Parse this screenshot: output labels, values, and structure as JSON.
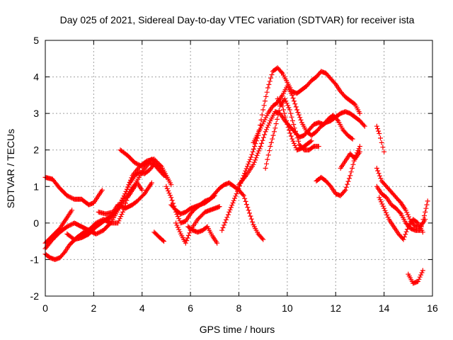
{
  "chart_data": {
    "type": "scatter",
    "title": "Day 025 of 2021, Sidereal Day-to-day VTEC variation (SDTVAR) for receiver ista",
    "xlabel": "GPS time / hours",
    "ylabel": "SDTVAR / TECUs",
    "xlim": [
      0,
      16
    ],
    "ylim": [
      -2,
      5
    ],
    "xticks": [
      0,
      2,
      4,
      6,
      8,
      10,
      12,
      14,
      16
    ],
    "yticks": [
      -2,
      -1,
      0,
      1,
      2,
      3,
      4,
      5
    ],
    "grid": true,
    "marker": "plus",
    "color": "#ff0000",
    "series": [
      {
        "x": [
          0.0,
          0.3,
          0.6,
          0.9,
          1.2,
          1.5,
          1.8,
          2.0,
          2.2,
          2.35
        ],
        "y": [
          1.25,
          1.2,
          0.95,
          0.75,
          0.65,
          0.65,
          0.5,
          0.55,
          0.75,
          0.9
        ]
      },
      {
        "x": [
          0.0,
          0.2,
          0.4,
          0.6,
          0.8,
          1.0,
          1.3,
          1.6,
          1.9,
          2.2,
          2.5,
          2.8,
          3.1,
          3.4,
          3.7,
          4.0,
          4.3,
          4.5,
          4.7,
          4.9
        ],
        "y": [
          -0.85,
          -0.95,
          -1.0,
          -0.95,
          -0.8,
          -0.6,
          -0.4,
          -0.25,
          -0.15,
          -0.05,
          0.1,
          0.25,
          0.45,
          0.75,
          1.05,
          1.4,
          1.65,
          1.6,
          1.45,
          1.3
        ]
      },
      {
        "x": [
          0.0,
          0.3,
          0.6,
          0.9,
          1.2,
          1.5,
          1.8,
          2.1,
          2.4,
          2.7,
          3.0,
          3.3,
          3.6,
          3.9,
          4.2,
          4.5,
          4.8,
          5.0,
          5.2
        ],
        "y": [
          -0.7,
          -0.45,
          -0.25,
          -0.1,
          0.0,
          -0.1,
          -0.2,
          -0.3,
          -0.2,
          0.0,
          0.35,
          0.8,
          1.3,
          1.55,
          1.7,
          1.75,
          1.55,
          1.3,
          1.05
        ]
      },
      {
        "x": [
          0.0,
          0.3,
          0.6,
          0.9,
          1.1
        ],
        "y": [
          -0.55,
          -0.35,
          -0.15,
          0.15,
          0.35
        ]
      },
      {
        "x": [
          0.9,
          1.2,
          1.5,
          1.8,
          2.1,
          2.4,
          2.7,
          3.0,
          3.3,
          3.5,
          3.7,
          3.9,
          4.1,
          4.3,
          4.5
        ],
        "y": [
          -0.3,
          -0.45,
          -0.4,
          -0.3,
          -0.1,
          0.05,
          0.15,
          0.4,
          0.8,
          1.1,
          1.3,
          1.4,
          1.35,
          1.45,
          1.6
        ]
      },
      {
        "x": [
          1.5,
          1.8,
          2.1,
          2.4,
          2.7,
          3.0,
          3.2,
          3.4,
          3.6,
          3.8,
          4.0
        ],
        "y": [
          -0.35,
          -0.2,
          0.0,
          0.1,
          0.0,
          0.0,
          0.3,
          0.7,
          0.9,
          1.1,
          0.9
        ]
      },
      {
        "x": [
          2.2,
          2.5,
          2.8,
          3.0,
          3.3,
          3.6,
          3.8,
          4.1,
          4.4
        ],
        "y": [
          0.3,
          0.25,
          0.3,
          0.5,
          0.4,
          0.5,
          0.6,
          0.8,
          1.1
        ]
      },
      {
        "x": [
          3.1,
          3.4,
          3.7,
          4.0,
          4.2,
          4.4,
          4.6,
          4.8,
          5.0
        ],
        "y": [
          2.0,
          1.85,
          1.65,
          1.55,
          1.65,
          1.75,
          1.6,
          1.45,
          1.25
        ]
      },
      {
        "x": [
          4.5,
          4.7,
          4.9
        ],
        "y": [
          -0.25,
          -0.38,
          -0.5
        ]
      },
      {
        "x": [
          5.0,
          5.2,
          5.4,
          5.6,
          5.8,
          6.0,
          6.2,
          6.4,
          6.6,
          6.8,
          7.0
        ],
        "y": [
          1.0,
          0.7,
          0.3,
          0.0,
          0.05,
          0.25,
          0.4,
          0.5,
          0.6,
          0.65,
          0.75
        ]
      },
      {
        "x": [
          5.2,
          5.4,
          5.6,
          5.8,
          6.0,
          6.2,
          6.4,
          6.6,
          6.8,
          7.0,
          7.2,
          7.4,
          7.6,
          7.8,
          8.0,
          8.2,
          8.4,
          8.6,
          8.8,
          9.0
        ],
        "y": [
          0.5,
          0.35,
          0.25,
          0.3,
          0.4,
          0.45,
          0.5,
          0.55,
          0.65,
          0.8,
          0.95,
          1.05,
          1.1,
          1.0,
          0.9,
          0.75,
          0.35,
          -0.05,
          -0.3,
          -0.45
        ]
      },
      {
        "x": [
          5.4,
          5.6,
          5.8,
          6.0,
          6.3,
          6.6,
          6.8,
          7.0,
          7.2
        ],
        "y": [
          0.0,
          -0.3,
          -0.55,
          -0.2,
          0.1,
          0.3,
          0.35,
          0.4,
          0.45
        ]
      },
      {
        "x": [
          5.9,
          6.1,
          6.3,
          6.5,
          6.7,
          6.9,
          7.1
        ],
        "y": [
          -0.1,
          -0.2,
          -0.25,
          -0.2,
          -0.1,
          -0.35,
          -0.55
        ]
      },
      {
        "x": [
          7.3,
          7.6,
          7.9,
          8.2,
          8.5,
          8.8,
          9.0,
          9.2,
          9.4,
          9.6,
          9.8,
          10.0,
          10.2,
          10.4,
          10.6,
          10.8,
          11.0,
          11.2,
          11.4,
          11.6,
          11.8,
          12.0,
          12.2,
          12.4,
          12.6,
          12.8,
          13.0
        ],
        "y": [
          -0.2,
          0.3,
          0.8,
          1.3,
          1.8,
          2.4,
          3.1,
          3.7,
          4.15,
          4.25,
          4.1,
          3.85,
          3.6,
          3.55,
          3.65,
          3.75,
          3.9,
          4.0,
          4.15,
          4.1,
          3.95,
          3.8,
          3.6,
          3.45,
          3.35,
          3.25,
          3.0
        ]
      },
      {
        "x": [
          8.0,
          8.3,
          8.6,
          8.9,
          9.1,
          9.3,
          9.5,
          9.7,
          9.9,
          10.1,
          10.3,
          10.5,
          10.7,
          10.9,
          11.1,
          11.3,
          11.5,
          11.7,
          11.9,
          12.1,
          12.3,
          12.5,
          12.7
        ],
        "y": [
          1.05,
          1.3,
          1.6,
          2.1,
          2.5,
          2.8,
          3.05,
          3.0,
          2.8,
          2.65,
          2.5,
          2.35,
          2.4,
          2.55,
          2.7,
          2.75,
          2.7,
          2.85,
          2.95,
          2.8,
          2.55,
          2.4,
          2.3
        ]
      },
      {
        "x": [
          8.6,
          8.9,
          9.2,
          9.4,
          9.6,
          9.8,
          10.0,
          10.2,
          10.4,
          10.6,
          10.8,
          11.0,
          11.2,
          11.4,
          11.6,
          11.8,
          12.0,
          12.2,
          12.4,
          12.6,
          12.8,
          13.0,
          13.2
        ],
        "y": [
          2.2,
          2.6,
          3.0,
          3.2,
          3.3,
          3.5,
          3.75,
          3.5,
          3.1,
          2.75,
          2.5,
          2.4,
          2.5,
          2.65,
          2.75,
          2.8,
          2.9,
          3.0,
          3.05,
          3.0,
          2.9,
          2.8,
          2.65
        ]
      },
      {
        "x": [
          9.1,
          9.3,
          9.5,
          9.7,
          9.9,
          10.1,
          10.3,
          10.5,
          10.7,
          10.9,
          11.1,
          11.3
        ],
        "y": [
          1.5,
          2.1,
          2.6,
          3.2,
          3.4,
          3.1,
          2.6,
          2.15,
          2.0,
          2.0,
          2.1,
          2.1
        ]
      },
      {
        "x": [
          9.6,
          9.8,
          10.0,
          10.2,
          10.4,
          10.6,
          10.8,
          11.0
        ],
        "y": [
          3.4,
          3.2,
          2.7,
          2.3,
          2.0,
          2.05,
          2.15,
          2.25
        ]
      },
      {
        "x": [
          11.2,
          11.4,
          11.6,
          11.8,
          12.0,
          12.2,
          12.4,
          12.6,
          12.8,
          13.0
        ],
        "y": [
          1.15,
          1.25,
          1.15,
          1.0,
          0.8,
          0.75,
          0.9,
          1.3,
          1.8,
          2.1
        ]
      },
      {
        "x": [
          12.2,
          12.4,
          12.6,
          12.8,
          13.0
        ],
        "y": [
          1.5,
          1.7,
          1.9,
          1.75,
          1.95
        ]
      },
      {
        "x": [
          13.7,
          13.8,
          13.9,
          14.0
        ],
        "y": [
          2.65,
          2.45,
          2.2,
          1.95
        ]
      },
      {
        "x": [
          13.7,
          13.9,
          14.1,
          14.3,
          14.5,
          14.7,
          14.9,
          15.1,
          15.3,
          15.5,
          15.7
        ],
        "y": [
          1.5,
          1.15,
          1.0,
          0.85,
          0.7,
          0.55,
          0.35,
          0.05,
          -0.1,
          -0.1,
          0.1
        ]
      },
      {
        "x": [
          13.7,
          13.9,
          14.1,
          14.3,
          14.5,
          14.7,
          14.9,
          15.1,
          15.3,
          15.5,
          15.7,
          15.8
        ],
        "y": [
          1.0,
          0.8,
          0.7,
          0.5,
          0.4,
          0.25,
          0.0,
          -0.15,
          -0.2,
          -0.2,
          0.3,
          0.6
        ]
      },
      {
        "x": [
          13.8,
          14.0,
          14.2,
          14.4,
          14.6,
          14.8,
          15.0,
          15.2,
          15.4,
          15.6
        ],
        "y": [
          0.7,
          0.4,
          0.1,
          -0.1,
          -0.3,
          -0.45,
          -0.1,
          0.1,
          0.0,
          -0.25
        ]
      },
      {
        "x": [
          15.0,
          15.2,
          15.4,
          15.6
        ],
        "y": [
          -1.4,
          -1.65,
          -1.6,
          -1.3
        ]
      }
    ]
  }
}
